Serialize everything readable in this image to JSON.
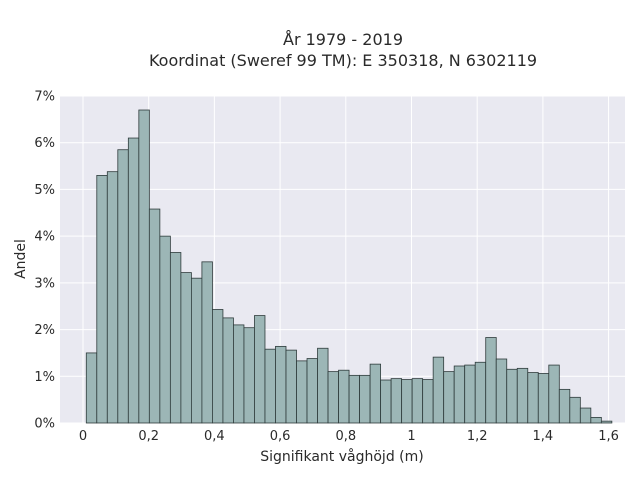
{
  "chart_data": {
    "type": "bar",
    "title_line1": "År 1979 - 2019",
    "title_line2": "Koordinat (Sweref 99 TM): E 350318, N 6302119",
    "xlabel": "Signifikant våghöjd (m)",
    "ylabel": "Andel",
    "xlim": [
      -0.07,
      1.65
    ],
    "ylim": [
      0,
      7
    ],
    "x_ticks": [
      {
        "value": 0,
        "label": "0"
      },
      {
        "value": 0.2,
        "label": "0,2"
      },
      {
        "value": 0.4,
        "label": "0,4"
      },
      {
        "value": 0.6,
        "label": "0,6"
      },
      {
        "value": 0.8,
        "label": "0,8"
      },
      {
        "value": 1.0,
        "label": "1"
      },
      {
        "value": 1.2,
        "label": "1,2"
      },
      {
        "value": 1.4,
        "label": "1,4"
      },
      {
        "value": 1.6,
        "label": "1,6"
      }
    ],
    "y_ticks": [
      {
        "value": 0,
        "label": "0%"
      },
      {
        "value": 1,
        "label": "1%"
      },
      {
        "value": 2,
        "label": "2%"
      },
      {
        "value": 3,
        "label": "3%"
      },
      {
        "value": 4,
        "label": "4%"
      },
      {
        "value": 5,
        "label": "5%"
      },
      {
        "value": 6,
        "label": "6%"
      },
      {
        "value": 7,
        "label": "7%"
      }
    ],
    "bin_start": 0.01,
    "bin_width": 0.032,
    "values": [
      1.5,
      5.3,
      5.38,
      5.85,
      6.1,
      6.7,
      4.58,
      4.0,
      3.65,
      3.22,
      3.1,
      3.45,
      2.43,
      2.25,
      2.1,
      2.04,
      2.3,
      1.58,
      1.64,
      1.56,
      1.33,
      1.38,
      1.6,
      1.1,
      1.13,
      1.02,
      1.02,
      1.26,
      0.92,
      0.95,
      0.93,
      0.95,
      0.93,
      1.41,
      1.1,
      1.22,
      1.24,
      1.3,
      1.83,
      1.37,
      1.15,
      1.17,
      1.08,
      1.06,
      1.24,
      0.72,
      0.55,
      0.32,
      0.12,
      0.04
    ],
    "grid": true,
    "colors": {
      "plot_background": "#e9e9f1",
      "grid": "#ffffff",
      "bar_fill": "#9cb6b6",
      "bar_edge": "#2e3b3b"
    }
  }
}
